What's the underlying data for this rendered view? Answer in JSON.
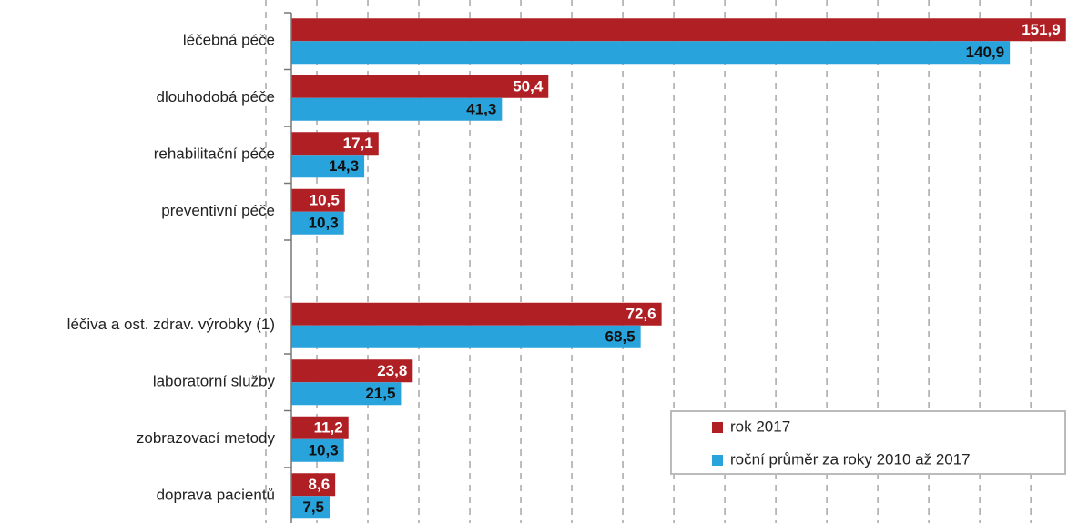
{
  "chart_data": {
    "type": "hbar",
    "categories": [
      "léčebná péče",
      "dlouhodobá péče",
      "rehabilitační péče",
      "preventivní péče",
      null,
      "léčiva a ost. zdrav. výrobky (1)",
      "laboratorní služby",
      "zobrazovací metody",
      "doprava pacientů"
    ],
    "series": [
      {
        "name": "rok 2017",
        "color": "#b01f24",
        "values": [
          151.9,
          50.4,
          17.1,
          10.5,
          null,
          72.6,
          23.8,
          11.2,
          8.6
        ],
        "value_labels": [
          "151,9",
          "50,4",
          "17,1",
          "10,5",
          null,
          "72,6",
          "23,8",
          "11,2",
          "8,6"
        ]
      },
      {
        "name": "roční průměr za roky 2010 až 2017",
        "color": "#29a3dc",
        "values": [
          140.9,
          41.3,
          14.3,
          10.3,
          null,
          68.5,
          21.5,
          10.3,
          7.5
        ],
        "value_labels": [
          "140,9",
          "41,3",
          "14,3",
          "10,3",
          null,
          "68,5",
          "21,5",
          "10,3",
          "7,5"
        ]
      }
    ],
    "xlim": [
      -5,
      152.3
    ],
    "xticks": [
      -5,
      5,
      15,
      25,
      35,
      45,
      55,
      65,
      75,
      85,
      95,
      105,
      115,
      125,
      135,
      145
    ],
    "grid": true
  }
}
